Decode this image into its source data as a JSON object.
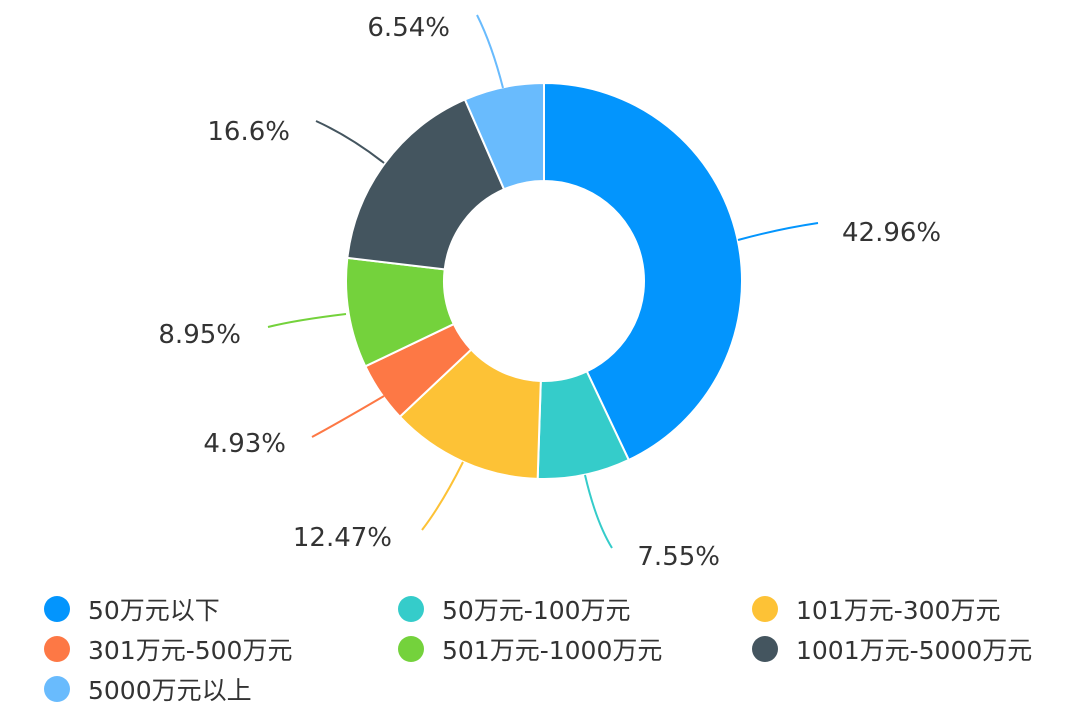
{
  "chart_data": {
    "type": "pie",
    "subtype": "donut",
    "categories": [
      "50万元以下",
      "50万元-100万元",
      "101万元-300万元",
      "301万元-500万元",
      "501万元-1000万元",
      "1001万元-5000万元",
      "5000万元以上"
    ],
    "values": [
      42.96,
      7.55,
      12.47,
      4.93,
      8.95,
      16.6,
      6.54
    ],
    "data_labels": [
      "42.96%",
      "7.55%",
      "12.47%",
      "4.93%",
      "8.95%",
      "16.6%",
      "6.54%"
    ],
    "colors": [
      "#0395fd",
      "#35ccca",
      "#fdc236",
      "#fd7845",
      "#74d23c",
      "#44555f",
      "#69bbfd"
    ],
    "legend_position": "bottom",
    "start_angle": "top, clockwise"
  }
}
